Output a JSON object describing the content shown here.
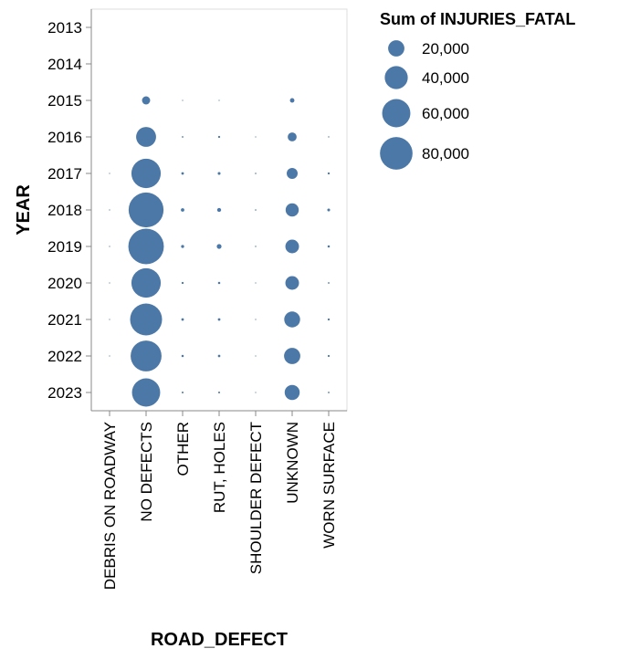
{
  "chart_data": {
    "type": "scatter",
    "mark": "circle",
    "x_field_label": "ROAD_DEFECT",
    "y_field_label": "YEAR",
    "categories_x": [
      "DEBRIS ON ROADWAY",
      "NO DEFECTS",
      "OTHER",
      "RUT, HOLES",
      "SHOULDER DEFECT",
      "UNKNOWN",
      "WORN SURFACE"
    ],
    "categories_y": [
      "2013",
      "2014",
      "2015",
      "2016",
      "2017",
      "2018",
      "2019",
      "2020",
      "2021",
      "2022",
      "2023"
    ],
    "size_field_label": "Sum of INJURIES_FATAL",
    "legend": {
      "title": "Sum of INJURIES_FATAL",
      "placement": "top-right",
      "entries": [
        {
          "label": "20,000",
          "value": 20000
        },
        {
          "label": "40,000",
          "value": 40000
        },
        {
          "label": "60,000",
          "value": 60000
        },
        {
          "label": "80,000",
          "value": 80000
        }
      ]
    },
    "color": "#4c78a8",
    "grid": false,
    "points": [
      {
        "x": "NO DEFECTS",
        "y": "2015",
        "size": 5000
      },
      {
        "x": "OTHER",
        "y": "2015",
        "size": 50
      },
      {
        "x": "RUT, HOLES",
        "y": "2015",
        "size": 60
      },
      {
        "x": "UNKNOWN",
        "y": "2015",
        "size": 1500
      },
      {
        "x": "NO DEFECTS",
        "y": "2016",
        "size": 30000
      },
      {
        "x": "OTHER",
        "y": "2016",
        "size": 200
      },
      {
        "x": "RUT, HOLES",
        "y": "2016",
        "size": 350
      },
      {
        "x": "SHOULDER DEFECT",
        "y": "2016",
        "size": 40
      },
      {
        "x": "UNKNOWN",
        "y": "2016",
        "size": 6000
      },
      {
        "x": "WORN SURFACE",
        "y": "2016",
        "size": 120
      },
      {
        "x": "DEBRIS ON ROADWAY",
        "y": "2017",
        "size": 80
      },
      {
        "x": "NO DEFECTS",
        "y": "2017",
        "size": 65000
      },
      {
        "x": "OTHER",
        "y": "2017",
        "size": 500
      },
      {
        "x": "RUT, HOLES",
        "y": "2017",
        "size": 600
      },
      {
        "x": "SHOULDER DEFECT",
        "y": "2017",
        "size": 150
      },
      {
        "x": "UNKNOWN",
        "y": "2017",
        "size": 9000
      },
      {
        "x": "WORN SURFACE",
        "y": "2017",
        "size": 350
      },
      {
        "x": "DEBRIS ON ROADWAY",
        "y": "2018",
        "size": 100
      },
      {
        "x": "NO DEFECTS",
        "y": "2018",
        "size": 92000
      },
      {
        "x": "OTHER",
        "y": "2018",
        "size": 900
      },
      {
        "x": "RUT, HOLES",
        "y": "2018",
        "size": 1200
      },
      {
        "x": "SHOULDER DEFECT",
        "y": "2018",
        "size": 150
      },
      {
        "x": "UNKNOWN",
        "y": "2018",
        "size": 13000
      },
      {
        "x": "WORN SURFACE",
        "y": "2018",
        "size": 600
      },
      {
        "x": "DEBRIS ON ROADWAY",
        "y": "2019",
        "size": 100
      },
      {
        "x": "NO DEFECTS",
        "y": "2019",
        "size": 95000
      },
      {
        "x": "OTHER",
        "y": "2019",
        "size": 700
      },
      {
        "x": "RUT, HOLES",
        "y": "2019",
        "size": 1700
      },
      {
        "x": "SHOULDER DEFECT",
        "y": "2019",
        "size": 120
      },
      {
        "x": "UNKNOWN",
        "y": "2019",
        "size": 14000
      },
      {
        "x": "WORN SURFACE",
        "y": "2019",
        "size": 400
      },
      {
        "x": "DEBRIS ON ROADWAY",
        "y": "2020",
        "size": 70
      },
      {
        "x": "NO DEFECTS",
        "y": "2020",
        "size": 65000
      },
      {
        "x": "OTHER",
        "y": "2020",
        "size": 350
      },
      {
        "x": "RUT, HOLES",
        "y": "2020",
        "size": 400
      },
      {
        "x": "SHOULDER DEFECT",
        "y": "2020",
        "size": 90
      },
      {
        "x": "UNKNOWN",
        "y": "2020",
        "size": 14000
      },
      {
        "x": "WORN SURFACE",
        "y": "2020",
        "size": 200
      },
      {
        "x": "DEBRIS ON ROADWAY",
        "y": "2021",
        "size": 70
      },
      {
        "x": "NO DEFECTS",
        "y": "2021",
        "size": 77000
      },
      {
        "x": "OTHER",
        "y": "2021",
        "size": 500
      },
      {
        "x": "RUT, HOLES",
        "y": "2021",
        "size": 500
      },
      {
        "x": "SHOULDER DEFECT",
        "y": "2021",
        "size": 100
      },
      {
        "x": "UNKNOWN",
        "y": "2021",
        "size": 19000
      },
      {
        "x": "WORN SURFACE",
        "y": "2021",
        "size": 350
      },
      {
        "x": "DEBRIS ON ROADWAY",
        "y": "2022",
        "size": 60
      },
      {
        "x": "NO DEFECTS",
        "y": "2022",
        "size": 72000
      },
      {
        "x": "OTHER",
        "y": "2022",
        "size": 400
      },
      {
        "x": "RUT, HOLES",
        "y": "2022",
        "size": 450
      },
      {
        "x": "SHOULDER DEFECT",
        "y": "2022",
        "size": 90
      },
      {
        "x": "UNKNOWN",
        "y": "2022",
        "size": 20000
      },
      {
        "x": "WORN SURFACE",
        "y": "2022",
        "size": 300
      },
      {
        "x": "NO DEFECTS",
        "y": "2023",
        "size": 60000
      },
      {
        "x": "OTHER",
        "y": "2023",
        "size": 250
      },
      {
        "x": "RUT, HOLES",
        "y": "2023",
        "size": 280
      },
      {
        "x": "SHOULDER DEFECT",
        "y": "2023",
        "size": 60
      },
      {
        "x": "UNKNOWN",
        "y": "2023",
        "size": 17000
      },
      {
        "x": "WORN SURFACE",
        "y": "2023",
        "size": 200
      }
    ]
  }
}
